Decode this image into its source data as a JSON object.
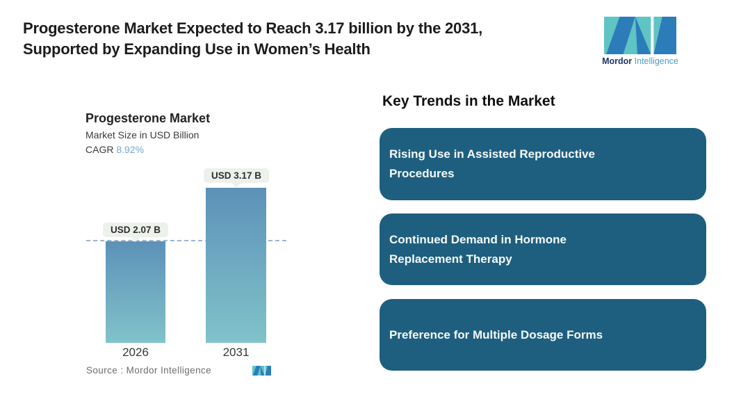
{
  "header": {
    "title_lines": [
      "Progesterone Market Expected to Reach 3.17 billion by the 2031,",
      "Supported by Expanding Use in Women’s Health"
    ],
    "brand": {
      "name_bold": "Mordor",
      "name_light": "Intelligence",
      "colors": {
        "teal": "#5fc4c4",
        "blue": "#2d7cba",
        "navy": "#1c3668",
        "light_blue": "#4a9dc8"
      }
    }
  },
  "chart": {
    "title": "Progesterone Market",
    "subtitle": "Market Size in USD Billion",
    "cagr_label": "CAGR",
    "cagr_value": "8.92%",
    "source": "Source :  Mordor Intelligence"
  },
  "chart_data": {
    "type": "bar",
    "title": "Progesterone Market",
    "subtitle": "Market Size in USD Billion",
    "unit": "USD Billion",
    "categories": [
      "2026",
      "2031"
    ],
    "values": [
      2.07,
      3.17
    ],
    "value_labels": [
      "USD 2.07 B",
      "USD 3.17 B"
    ],
    "cagr_percent": 8.92,
    "reference_line_value": 2.07,
    "ylim": [
      0,
      3.5
    ],
    "grid": false,
    "legend": "none",
    "colors": {
      "bar_gradient_top": "#5d91b8",
      "bar_gradient_bottom": "#80c3ca",
      "reference_line": "#9cb5d0",
      "cagr_accent": "#74a7cd",
      "value_chip_bg": "#edf1ec"
    }
  },
  "trends": {
    "heading": "Key Trends in the Market",
    "card_color": "#1e5f7f",
    "items": [
      {
        "label": "Rising Use in Assisted Reproductive Procedures",
        "lines": [
          "Rising Use in Assisted Reproductive",
          "Procedures"
        ]
      },
      {
        "label": "Continued Demand in Hormone Replacement Therapy",
        "lines": [
          "Continued Demand in Hormone",
          "Replacement Therapy"
        ]
      },
      {
        "label": "Preference for Multiple Dosage Forms",
        "lines": [
          "Preference for Multiple Dosage Forms"
        ]
      }
    ]
  }
}
